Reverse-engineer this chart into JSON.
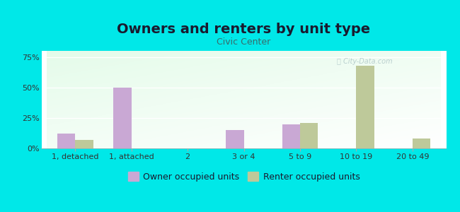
{
  "title": "Owners and renters by unit type",
  "subtitle": "Civic Center",
  "categories": [
    "1, detached",
    "1, attached",
    "2",
    "3 or 4",
    "5 to 9",
    "10 to 19",
    "20 to 49"
  ],
  "owner_values": [
    12,
    50,
    0,
    15,
    20,
    0,
    0
  ],
  "renter_values": [
    7,
    0,
    0,
    0,
    21,
    68,
    8
  ],
  "owner_color": "#c9a8d4",
  "renter_color": "#bec99a",
  "background_color": "#00e8e8",
  "yticks": [
    0,
    25,
    50,
    75
  ],
  "ylim": [
    0,
    80
  ],
  "bar_width": 0.32,
  "legend_owner": "Owner occupied units",
  "legend_renter": "Renter occupied units",
  "title_fontsize": 14,
  "subtitle_fontsize": 9,
  "tick_fontsize": 8,
  "legend_fontsize": 9,
  "title_color": "#1a1a2e",
  "subtitle_color": "#3a6b6b",
  "tick_color": "#333333"
}
